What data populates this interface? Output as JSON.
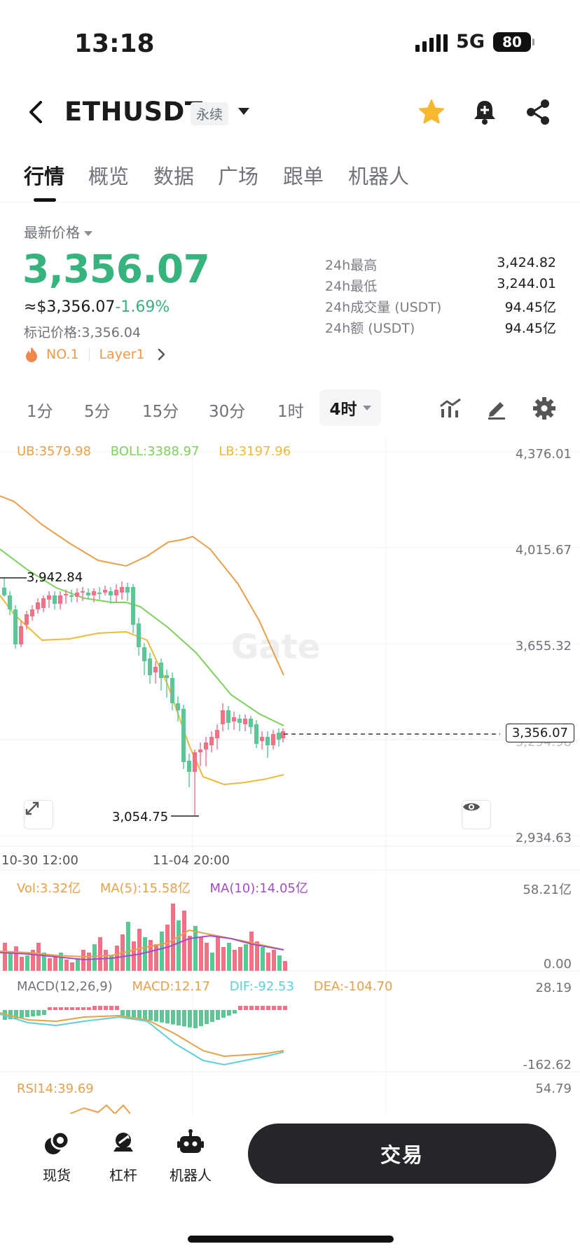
{
  "status_bar": {
    "time": "13:18",
    "network": "5G",
    "battery": "80"
  },
  "header": {
    "pair": "ETHUSDT",
    "contract_type": "永续"
  },
  "tabs": [
    {
      "label": "行情",
      "active": true
    },
    {
      "label": "概览",
      "active": false
    },
    {
      "label": "数据",
      "active": false
    },
    {
      "label": "广场",
      "active": false
    },
    {
      "label": "跟单",
      "active": false
    },
    {
      "label": "机器人",
      "active": false
    }
  ],
  "ticker": {
    "price_type_label": "最新价格",
    "last_price": "3,356.07",
    "usd_value": "≈$3,356.07",
    "change": "-1.69%",
    "mark_price_label": "标记价格:",
    "mark_price": "3,356.04",
    "rank_tag": "NO.1",
    "category_tag": "Layer1",
    "stats": [
      {
        "label": "24h最高",
        "value": "3,424.82"
      },
      {
        "label": "24h最低",
        "value": "3,244.01"
      },
      {
        "label": "24h成交量 (USDT)",
        "value": "94.45亿"
      },
      {
        "label": "24h额 (USDT)",
        "value": "94.45亿"
      }
    ]
  },
  "intervals": [
    "1分",
    "5分",
    "15分",
    "30分",
    "1时",
    "4时"
  ],
  "active_interval": "4时",
  "chart": {
    "boll_legend": {
      "ub": "UB:3579.98",
      "boll": "BOLL:3388.97",
      "lb": "LB:3197.96"
    },
    "price_axis": [
      "4,376.01",
      "4,015.67",
      "3,655.32",
      "3,294.98",
      "2,934.63"
    ],
    "last_price_marker": "3,356.07",
    "high_marker": "3,942.84",
    "low_marker": "3,054.75",
    "time_axis": [
      "10-30 12:00",
      "11-04 20:00"
    ],
    "watermark": "Gate",
    "volume_legend": {
      "vol": "Vol:3.32亿",
      "ma5": "MA(5):15.58亿",
      "ma10": "MA(10):14.05亿"
    },
    "volume_axis": [
      "58.21亿",
      "0.00"
    ],
    "macd_legend": {
      "params": "MACD(12,26,9)",
      "macd": "MACD:12.17",
      "dif": "DIF:-92.53",
      "dea": "DEA:-104.70"
    },
    "macd_axis": [
      "28.19",
      "-162.62"
    ],
    "rsi_legend": "RSI14:39.69",
    "rsi_axis": "54.79"
  },
  "bottom_bar": {
    "items": [
      {
        "label": "现货",
        "icon": "spot-icon"
      },
      {
        "label": "杠杆",
        "icon": "margin-icon"
      },
      {
        "label": "机器人",
        "icon": "robot-icon"
      }
    ],
    "trade_label": "交易"
  },
  "colors": {
    "up": "#f07284",
    "down": "#5cc795",
    "price_green": "#37b37e",
    "ub_line": "#e8a04a",
    "boll_line": "#7ed15b",
    "lb_line": "#eeb93a",
    "ma10": "#a04fc8",
    "dif": "#5fd0d6"
  }
}
